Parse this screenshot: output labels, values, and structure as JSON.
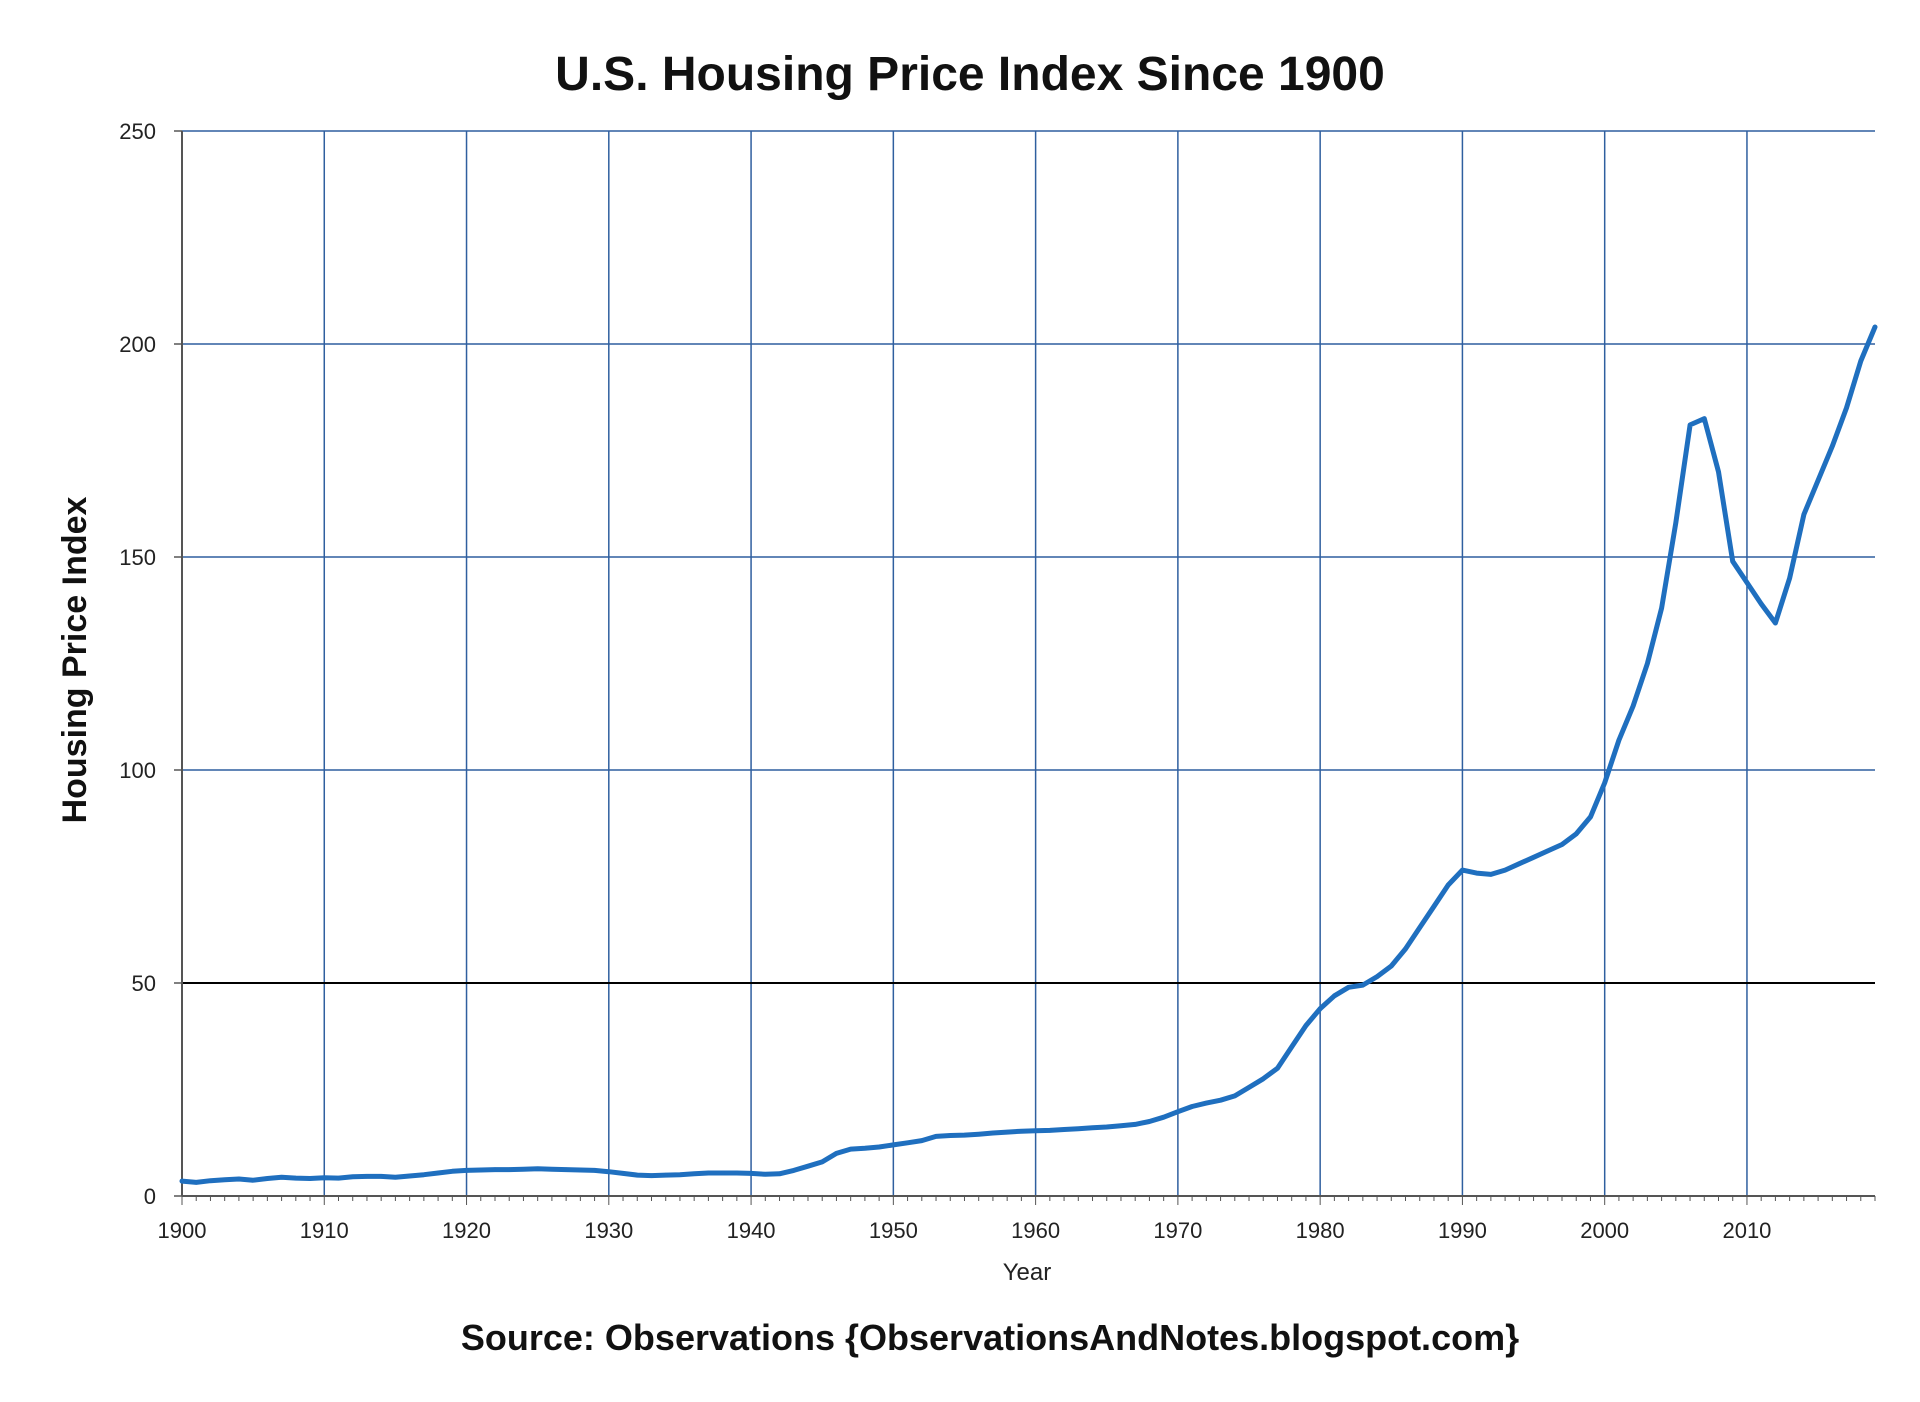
{
  "chart_data": {
    "type": "line",
    "title": "U.S. Housing Price Index Since 1900",
    "xlabel": "Year",
    "ylabel": "Housing Price Index",
    "source": "Source: Observations {ObservationsAndNotes.blogspot.com}",
    "xlim": [
      1900,
      2019
    ],
    "ylim": [
      0,
      250
    ],
    "x_ticks": [
      1900,
      1910,
      1920,
      1930,
      1940,
      1950,
      1960,
      1970,
      1980,
      1990,
      2000,
      2010
    ],
    "y_ticks": [
      0,
      50,
      100,
      150,
      200,
      250
    ],
    "grid": true,
    "colors": {
      "line": "#1f6fbf",
      "grid": "#2f5f9f",
      "axis": "#555555",
      "highlight_gridline": "#000000"
    },
    "series": [
      {
        "name": "Housing Price Index",
        "x": [
          1900,
          1901,
          1902,
          1903,
          1904,
          1905,
          1906,
          1907,
          1908,
          1909,
          1910,
          1911,
          1912,
          1913,
          1914,
          1915,
          1916,
          1917,
          1918,
          1919,
          1920,
          1921,
          1922,
          1923,
          1924,
          1925,
          1926,
          1927,
          1928,
          1929,
          1930,
          1931,
          1932,
          1933,
          1934,
          1935,
          1936,
          1937,
          1938,
          1939,
          1940,
          1941,
          1942,
          1943,
          1944,
          1945,
          1946,
          1947,
          1948,
          1949,
          1950,
          1951,
          1952,
          1953,
          1954,
          1955,
          1956,
          1957,
          1958,
          1959,
          1960,
          1961,
          1962,
          1963,
          1964,
          1965,
          1966,
          1967,
          1968,
          1969,
          1970,
          1971,
          1972,
          1973,
          1974,
          1975,
          1976,
          1977,
          1978,
          1979,
          1980,
          1981,
          1982,
          1983,
          1984,
          1985,
          1986,
          1987,
          1988,
          1989,
          1990,
          1991,
          1992,
          1993,
          1994,
          1995,
          1996,
          1997,
          1998,
          1999,
          2000,
          2001,
          2002,
          2003,
          2004,
          2005,
          2006,
          2007,
          2008,
          2009,
          2010,
          2011,
          2012,
          2013,
          2014,
          2015,
          2016,
          2017,
          2018,
          2019
        ],
        "values": [
          3.5,
          3.2,
          3.6,
          3.8,
          4.0,
          3.7,
          4.1,
          4.4,
          4.2,
          4.1,
          4.3,
          4.2,
          4.5,
          4.6,
          4.6,
          4.4,
          4.7,
          5.0,
          5.4,
          5.8,
          6.0,
          6.1,
          6.2,
          6.2,
          6.3,
          6.4,
          6.3,
          6.2,
          6.1,
          6.0,
          5.7,
          5.3,
          4.9,
          4.8,
          4.9,
          5.0,
          5.2,
          5.4,
          5.4,
          5.4,
          5.3,
          5.1,
          5.2,
          6.0,
          7.0,
          8.0,
          10.0,
          11.0,
          11.2,
          11.5,
          12.0,
          12.5,
          13.0,
          14.0,
          14.2,
          14.3,
          14.5,
          14.8,
          15.0,
          15.2,
          15.3,
          15.4,
          15.6,
          15.8,
          16.0,
          16.2,
          16.5,
          16.8,
          17.5,
          18.5,
          19.8,
          21.0,
          21.8,
          22.5,
          23.5,
          25.5,
          27.5,
          30.0,
          35.0,
          40.0,
          44.0,
          47.0,
          49.0,
          49.5,
          51.5,
          54.0,
          58.0,
          63.0,
          68.0,
          73.0,
          76.5,
          75.8,
          75.5,
          76.5,
          78.0,
          79.5,
          81.0,
          82.5,
          85.0,
          89.0,
          97.0,
          107.0,
          115.0,
          125.0,
          138.0,
          158.0,
          181.0,
          182.5,
          170.0,
          149.0,
          144.0,
          139.0,
          134.5,
          145.0,
          160.0,
          168.0,
          176.0,
          185.0,
          196.0,
          204.0
        ]
      }
    ]
  }
}
